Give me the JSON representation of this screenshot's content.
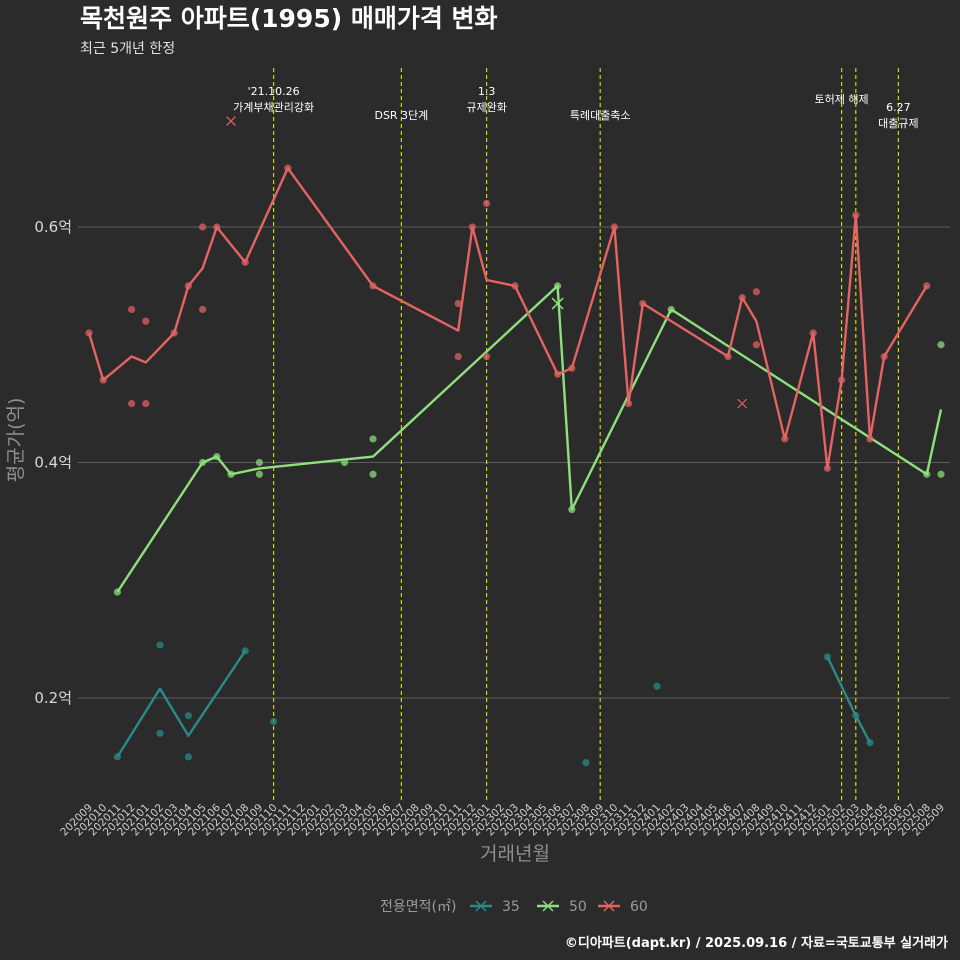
{
  "title": "목천원주 아파트(1995) 매매가격 변화",
  "subtitle": "최근 5개년 한정",
  "caption": "©디아파트(dapt.kr) / 2025.09.16 / 자료=국토교통부 실거래가",
  "colors": {
    "35": "#2a8a8a",
    "50": "#8ee07e",
    "60": "#e46363",
    "event_line": "#d4d400",
    "grid": "#5c5c5c",
    "background": "#2b2b2b"
  },
  "chart_data": {
    "type": "line",
    "xlabel": "거래년월",
    "ylabel": "평균가(억)",
    "categories": [
      "202009",
      "202010",
      "202011",
      "202012",
      "202101",
      "202102",
      "202103",
      "202104",
      "202105",
      "202106",
      "202107",
      "202108",
      "202109",
      "202110",
      "202111",
      "202112",
      "202201",
      "202202",
      "202203",
      "202204",
      "202205",
      "202206",
      "202207",
      "202208",
      "202209",
      "202210",
      "202211",
      "202212",
      "202301",
      "202302",
      "202303",
      "202304",
      "202305",
      "202306",
      "202307",
      "202308",
      "202309",
      "202310",
      "202311",
      "202312",
      "202401",
      "202402",
      "202403",
      "202404",
      "202405",
      "202406",
      "202407",
      "202408",
      "202409",
      "202410",
      "202411",
      "202412",
      "202501",
      "202502",
      "202503",
      "202504",
      "202505",
      "202506",
      "202507",
      "202508",
      "202509"
    ],
    "ylim": [
      0.12,
      0.74
    ],
    "yticks": [
      {
        "value": 0.2,
        "label": "0.2억"
      },
      {
        "value": 0.4,
        "label": "0.4억"
      },
      {
        "value": 0.6,
        "label": "0.6억"
      }
    ],
    "grid": true,
    "legend": {
      "title": "전용면적(㎡)",
      "position": "bottom",
      "entries": [
        "35",
        "50",
        "60"
      ]
    },
    "series": [
      {
        "name": "35",
        "line": [
          [
            "202011",
            0.15
          ],
          [
            "202102",
            0.208
          ],
          [
            "202104",
            0.168
          ],
          [
            "202108",
            0.24
          ],
          null,
          [
            "202501",
            0.235
          ],
          [
            "202503",
            0.185
          ],
          [
            "202504",
            0.162
          ]
        ],
        "points": [
          [
            "202011",
            0.15
          ],
          [
            "202102",
            0.245
          ],
          [
            "202102",
            0.17
          ],
          [
            "202104",
            0.185
          ],
          [
            "202104",
            0.15
          ],
          [
            "202108",
            0.24
          ],
          [
            "202110",
            0.18
          ],
          [
            "202308",
            0.145
          ],
          [
            "202401",
            0.21
          ],
          [
            "202501",
            0.235
          ],
          [
            "202503",
            0.185
          ],
          [
            "202504",
            0.162
          ]
        ],
        "crosses": []
      },
      {
        "name": "50",
        "line": [
          [
            "202011",
            0.29
          ],
          [
            "202105",
            0.4
          ],
          [
            "202106",
            0.405
          ],
          [
            "202107",
            0.39
          ],
          [
            "202109",
            0.395
          ],
          [
            "202205",
            0.405
          ],
          [
            "202306",
            0.55
          ],
          [
            "202307",
            0.36
          ],
          [
            "202402",
            0.53
          ],
          [
            "202508",
            0.39
          ],
          [
            "202509",
            0.445
          ]
        ],
        "points": [
          [
            "202011",
            0.29
          ],
          [
            "202105",
            0.4
          ],
          [
            "202106",
            0.405
          ],
          [
            "202107",
            0.39
          ],
          [
            "202109",
            0.4
          ],
          [
            "202109",
            0.39
          ],
          [
            "202203",
            0.4
          ],
          [
            "202205",
            0.42
          ],
          [
            "202205",
            0.39
          ],
          [
            "202306",
            0.55
          ],
          [
            "202307",
            0.36
          ],
          [
            "202402",
            0.53
          ],
          [
            "202508",
            0.39
          ],
          [
            "202509",
            0.5
          ],
          [
            "202509",
            0.39
          ]
        ],
        "crosses": [
          [
            "202306",
            0.535
          ]
        ]
      },
      {
        "name": "60",
        "line": [
          [
            "202009",
            0.51
          ],
          [
            "202010",
            0.47
          ],
          [
            "202012",
            0.49
          ],
          [
            "202101",
            0.485
          ],
          [
            "202103",
            0.51
          ],
          [
            "202104",
            0.55
          ],
          [
            "202105",
            0.565
          ],
          [
            "202106",
            0.6
          ],
          [
            "202108",
            0.57
          ],
          [
            "202111",
            0.65
          ],
          [
            "202205",
            0.55
          ],
          [
            "202211",
            0.512
          ],
          [
            "202212",
            0.6
          ],
          [
            "202301",
            0.555
          ],
          [
            "202303",
            0.55
          ],
          [
            "202306",
            0.475
          ],
          [
            "202307",
            0.48
          ],
          [
            "202310",
            0.6
          ],
          [
            "202311",
            0.45
          ],
          [
            "202312",
            0.535
          ],
          [
            "202406",
            0.49
          ],
          [
            "202407",
            0.54
          ],
          [
            "202408",
            0.52
          ],
          [
            "202410",
            0.42
          ],
          [
            "202412",
            0.51
          ],
          [
            "202501",
            0.395
          ],
          [
            "202502",
            0.47
          ],
          [
            "202503",
            0.61
          ],
          [
            "202504",
            0.42
          ],
          [
            "202505",
            0.49
          ],
          [
            "202508",
            0.55
          ]
        ],
        "points": [
          [
            "202009",
            0.51
          ],
          [
            "202010",
            0.47
          ],
          [
            "202012",
            0.53
          ],
          [
            "202012",
            0.45
          ],
          [
            "202101",
            0.52
          ],
          [
            "202101",
            0.45
          ],
          [
            "202103",
            0.51
          ],
          [
            "202104",
            0.55
          ],
          [
            "202105",
            0.6
          ],
          [
            "202105",
            0.53
          ],
          [
            "202106",
            0.6
          ],
          [
            "202108",
            0.57
          ],
          [
            "202111",
            0.65
          ],
          [
            "202205",
            0.55
          ],
          [
            "202211",
            0.535
          ],
          [
            "202211",
            0.49
          ],
          [
            "202212",
            0.6
          ],
          [
            "202301",
            0.62
          ],
          [
            "202301",
            0.49
          ],
          [
            "202303",
            0.55
          ],
          [
            "202306",
            0.475
          ],
          [
            "202307",
            0.48
          ],
          [
            "202310",
            0.6
          ],
          [
            "202311",
            0.45
          ],
          [
            "202312",
            0.535
          ],
          [
            "202406",
            0.49
          ],
          [
            "202407",
            0.54
          ],
          [
            "202408",
            0.545
          ],
          [
            "202408",
            0.5
          ],
          [
            "202410",
            0.42
          ],
          [
            "202412",
            0.51
          ],
          [
            "202501",
            0.395
          ],
          [
            "202502",
            0.47
          ],
          [
            "202503",
            0.61
          ],
          [
            "202504",
            0.42
          ],
          [
            "202505",
            0.49
          ],
          [
            "202508",
            0.55
          ]
        ],
        "crosses": [
          [
            "202107",
            0.69
          ],
          [
            "202407",
            0.45
          ]
        ]
      }
    ],
    "events": [
      {
        "x": "202110",
        "lines": [
          "'21.10.26",
          "가계부채관리강화"
        ]
      },
      {
        "x": "202207",
        "lines": [
          "DSR 3단계"
        ]
      },
      {
        "x": "202301",
        "lines": [
          "1.3",
          "규제완화"
        ]
      },
      {
        "x": "202309",
        "lines": [
          "특례대출축소"
        ]
      },
      {
        "x": "202502",
        "lines": [
          "토허제 해제"
        ]
      },
      {
        "x": "202503",
        "lines": []
      },
      {
        "x": "202506",
        "lines": [
          "6.27",
          "대출규제"
        ]
      }
    ]
  }
}
